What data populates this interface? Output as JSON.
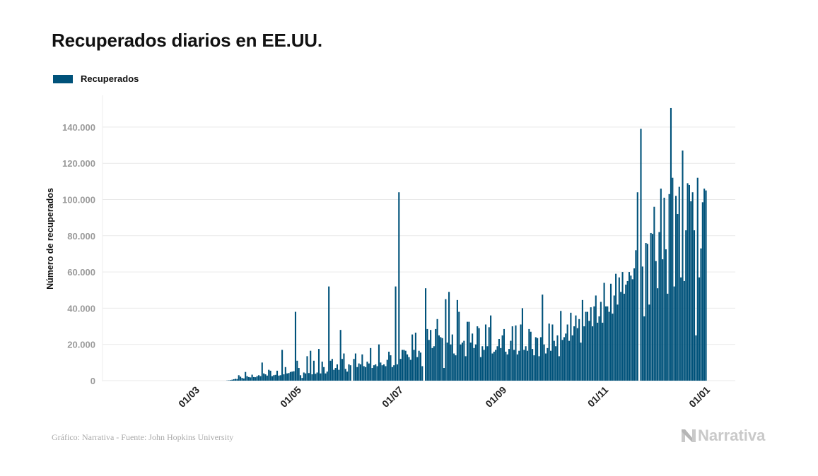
{
  "title": "Recuperados diarios en EE.UU.",
  "source": "Gráfico: Narrativa - Fuente: John Hopkins University",
  "logo_text": "Narrativa",
  "colors": {
    "bar": "#00527a",
    "grid": "#e9e9e9",
    "tick": "#9a9a9a",
    "logo": "#c9c9c9"
  },
  "chart_data": {
    "type": "bar",
    "title": "Recuperados diarios en EE.UU.",
    "xlabel": "",
    "ylabel": "Número de recuperados",
    "legend": {
      "position": "top-left",
      "entries": [
        "Recuperados"
      ]
    },
    "grid": true,
    "ylim": [
      0,
      157500
    ],
    "xlim": [
      "2020-01-22",
      "2021-01-01"
    ],
    "yticks": [
      0,
      20000,
      40000,
      60000,
      80000,
      100000,
      120000,
      140000
    ],
    "ytick_labels": [
      "0",
      "20.000",
      "40.000",
      "60.000",
      "80.000",
      "100.000",
      "120.000",
      "140.000"
    ],
    "xticks": [
      "2020-03-01",
      "2020-05-01",
      "2020-07-01",
      "2020-09-01",
      "2020-11-01",
      "2021-01-01"
    ],
    "xtick_labels": [
      "01/03",
      "01/05",
      "01/07",
      "01/09",
      "01/11",
      "01/01"
    ],
    "series": [
      {
        "name": "Recuperados",
        "x_months": [
          "2020-01",
          "2020-02",
          "2020-03",
          "2020-04",
          "2020-05",
          "2020-06",
          "2020-07",
          "2020-08",
          "2020-09",
          "2020-10",
          "2020-11",
          "2020-12"
        ],
        "values_by_month": {
          "2020-01": {
            "first_day": 22,
            "values": [
              0,
              0,
              0,
              0,
              0,
              0,
              0,
              0,
              0,
              0
            ]
          },
          "2020-02": {
            "first_day": 1,
            "values": [
              0,
              0,
              0,
              0,
              0,
              0,
              0,
              0,
              0,
              0,
              0,
              0,
              0,
              0,
              0,
              0,
              0,
              0,
              0,
              0,
              0,
              0,
              0,
              0,
              0,
              0,
              0,
              0,
              0
            ]
          },
          "2020-03": {
            "first_day": 1,
            "values": [
              0,
              0,
              0,
              0,
              0,
              0,
              0,
              0,
              0,
              0,
              0,
              0,
              0,
              0,
              0,
              0,
              0,
              100,
              200,
              300,
              500,
              800,
              1000,
              900,
              3000,
              2200,
              1500,
              1200,
              4800,
              2500,
              2000
            ]
          },
          "2020-04": {
            "first_day": 1,
            "values": [
              1800,
              3300,
              2000,
              1900,
              2500,
              3000,
              2500,
              10000,
              4000,
              3500,
              2800,
              6000,
              5500,
              2500,
              3000,
              3200,
              5500,
              2800,
              3000,
              17000,
              3500,
              7500,
              4000,
              4200,
              4800,
              5000,
              5200,
              38000,
              11000,
              7000
            ]
          },
          "2020-05": {
            "first_day": 1,
            "values": [
              3000,
              1500,
              4500,
              4000,
              13500,
              4200,
              16500,
              3500,
              11000,
              3800,
              4500,
              17500,
              4000,
              10500,
              7500,
              4000,
              5000,
              52000,
              11000,
              12000,
              6000,
              7000,
              9000,
              6000,
              28000,
              12000,
              15000,
              6500,
              5000,
              9000,
              8500
            ]
          },
          "2020-06": {
            "first_day": 1,
            "values": [
              0,
              12000,
              15000,
              7500,
              9500,
              9000,
              14500,
              8000,
              7500,
              10500,
              9500,
              18000,
              7000,
              8500,
              9000,
              8000,
              20000,
              10000,
              8500,
              9000,
              8000,
              11500,
              16000,
              14000,
              7500,
              8500,
              52000,
              9000,
              104000,
              12000
            ]
          },
          "2020-07": {
            "first_day": 1,
            "values": [
              17000,
              17000,
              16500,
              14500,
              13000,
              11500,
              25500,
              17000,
              26500,
              13000,
              16500,
              15500,
              8000,
              0,
              51000,
              28500,
              22500,
              28000,
              18000,
              19000,
              28500,
              34000,
              25000,
              24000,
              23500,
              7000,
              45000,
              21000,
              49000,
              20000,
              25500
            ]
          },
          "2020-08": {
            "first_day": 1,
            "values": [
              15000,
              14000,
              44500,
              38000,
              20000,
              21000,
              22000,
              13500,
              32500,
              32500,
              21000,
              26000,
              18000,
              20000,
              30000,
              29000,
              13000,
              19000,
              17000,
              31000,
              19000,
              29500,
              36000,
              15000,
              16000,
              17000,
              19000,
              23000,
              18000,
              25000,
              28500
            ]
          },
          "2020-09": {
            "first_day": 1,
            "values": [
              16000,
              14500,
              17500,
              22000,
              30000,
              17000,
              30500,
              14500,
              16500,
              31000,
              40000,
              17000,
              19000,
              16500,
              28500,
              27000,
              17500,
              14000,
              24000,
              23500,
              13500,
              24000,
              47500,
              20000,
              15000,
              18000,
              31500,
              16500,
              31000,
              22000
            ]
          },
          "2020-10": {
            "first_day": 1,
            "values": [
              19000,
              25000,
              13500,
              38500,
              22500,
              24000,
              26000,
              31000,
              22000,
              37500,
              25000,
              30000,
              36000,
              29000,
              34000,
              21000,
              44500,
              30000,
              38000,
              38000,
              33000,
              40500,
              30000,
              41000,
              47000,
              32000,
              35500,
              43500,
              32000,
              54000,
              41000
            ]
          },
          "2020-11": {
            "first_day": 1,
            "values": [
              41000,
              38000,
              53500,
              37000,
              47000,
              59000,
              42000,
              57000,
              49000,
              60000,
              48000,
              53000,
              55000,
              60000,
              58000,
              56000,
              62000,
              72000,
              104000,
              0,
              139000,
              63000,
              35500,
              76000,
              75500,
              42000,
              81500,
              81000,
              96000,
              66000
            ]
          },
          "2020-12": {
            "first_day": 1,
            "values": [
              51000,
              82000,
              106000,
              67000,
              101000,
              72500,
              48000,
              103000,
              150500,
              112000,
              52000,
              102000,
              92000,
              107000,
              57000,
              127000,
              55000,
              83000,
              109000,
              108000,
              99000,
              104000,
              83000,
              25000,
              112000,
              57000,
              73000,
              98500,
              106000,
              105000
            ]
          }
        }
      }
    ]
  }
}
